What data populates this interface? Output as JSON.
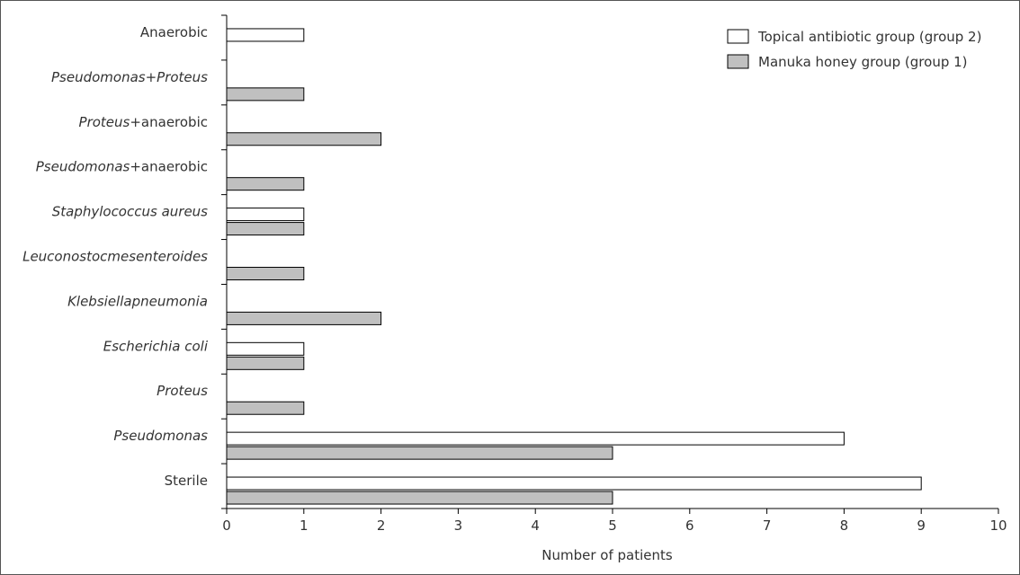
{
  "chart_data": {
    "type": "bar",
    "orientation": "horizontal",
    "categories": [
      {
        "label": "Anaerobic",
        "italic": false
      },
      {
        "label": "Pseudomonas+Proteus",
        "italic": true
      },
      {
        "label": "Proteus+anaerobic",
        "italic": false,
        "italic_part": "Proteus"
      },
      {
        "label": "Pseudomonas+anaerobic",
        "italic": false,
        "italic_part": "Pseudomonas"
      },
      {
        "label": "Staphylococcus aureus",
        "italic": true
      },
      {
        "label": "Leuconostocmesenteroides",
        "italic": true
      },
      {
        "label": "Klebsiellapneumonia",
        "italic": true
      },
      {
        "label": "Escherichia coli",
        "italic": true
      },
      {
        "label": "Proteus",
        "italic": true
      },
      {
        "label": "Pseudomonas",
        "italic": true
      },
      {
        "label": "Sterile",
        "italic": false
      }
    ],
    "series": [
      {
        "name": "Topical antibiotic group (group 2)",
        "color": "#ffffff",
        "values": [
          1,
          0,
          0,
          0,
          1,
          0,
          0,
          1,
          0,
          8,
          9
        ]
      },
      {
        "name": "Manuka honey group (group 1)",
        "color": "#c0c0c0",
        "values": [
          0,
          1,
          2,
          1,
          1,
          1,
          2,
          1,
          1,
          5,
          5
        ]
      }
    ],
    "xlabel": "Number of patients",
    "xlim": [
      0,
      10
    ],
    "xticks": [
      "0",
      "1",
      "2",
      "3",
      "4",
      "5",
      "6",
      "7",
      "8",
      "9",
      "10"
    ],
    "grid": false,
    "legend_position": "top-right"
  }
}
